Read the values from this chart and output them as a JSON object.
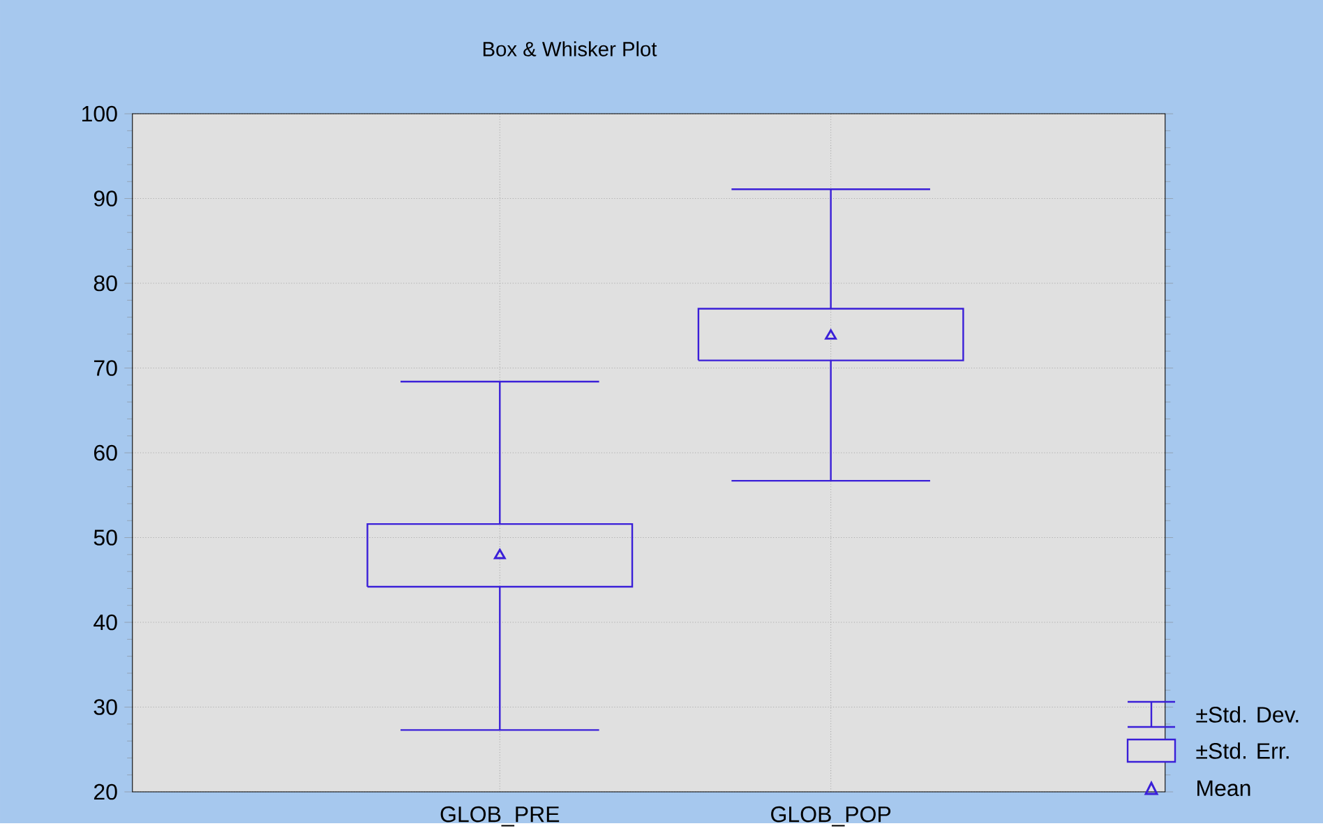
{
  "chart_data": {
    "type": "box",
    "title": "Box & Whisker Plot",
    "categories": [
      "GLOB_PRE",
      "GLOB_POP"
    ],
    "boxes": [
      {
        "low": 27.3,
        "q1": 44.2,
        "q3": 51.6,
        "high": 68.4,
        "mean": 47.9
      },
      {
        "low": 56.7,
        "q1": 70.9,
        "q3": 77.0,
        "high": 91.1,
        "mean": 73.8
      }
    ],
    "color": "#3a1fd8",
    "ylim": [
      20,
      100
    ],
    "yticks": [
      20,
      30,
      40,
      50,
      60,
      70,
      80,
      90,
      100
    ],
    "grid": true,
    "marker": "triangle",
    "annotations": [
      "±Std. Dev.",
      "±Std. Err.",
      "Mean"
    ]
  }
}
